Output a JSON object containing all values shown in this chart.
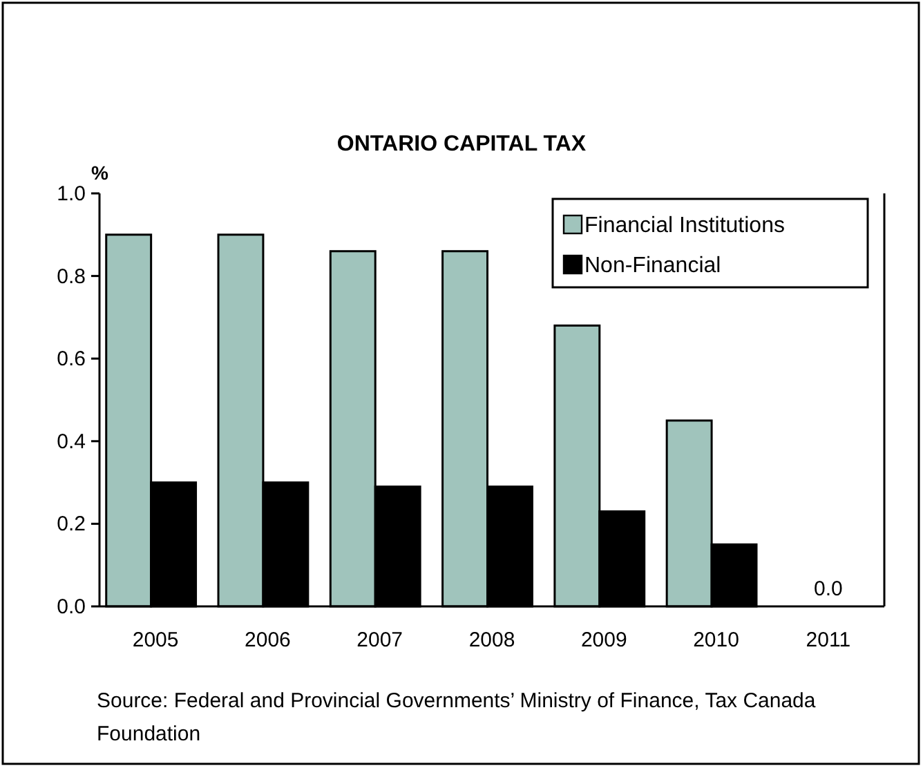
{
  "chart_data": {
    "type": "bar",
    "title": "ONTARIO CAPITAL TAX",
    "ylabel": "%",
    "categories": [
      "2005",
      "2006",
      "2007",
      "2008",
      "2009",
      "2010",
      "2011"
    ],
    "series": [
      {
        "name": "Financial Institutions",
        "color": "#a0c4bc",
        "values": [
          0.9,
          0.9,
          0.86,
          0.86,
          0.68,
          0.45,
          0
        ],
        "value_labels": [
          null,
          null,
          null,
          null,
          null,
          null,
          "0.0"
        ]
      },
      {
        "name": "Non-Financial",
        "color": "#000000",
        "values": [
          0.3,
          0.3,
          0.29,
          0.29,
          0.23,
          0.15,
          0
        ]
      }
    ],
    "ylim": [
      0,
      1
    ],
    "yticks": [
      {
        "value": 0,
        "label": "0.0"
      },
      {
        "value": 0.2,
        "label": "0.2"
      },
      {
        "value": 0.4,
        "label": "0.4"
      },
      {
        "value": 0.6,
        "label": "0.6"
      },
      {
        "value": 0.8,
        "label": "0.8"
      },
      {
        "value": 1,
        "label": "1.0"
      }
    ],
    "grid": false,
    "legend": "top right",
    "annotations": [
      "Source: Federal and Provincial Governments’ Ministry of Finance, Tax Canada Foundation"
    ]
  }
}
